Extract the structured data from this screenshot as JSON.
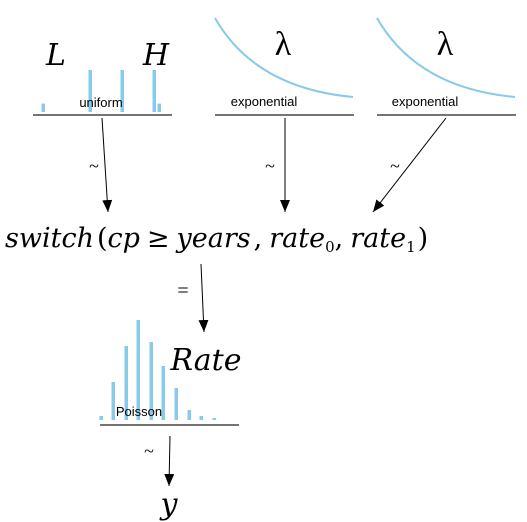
{
  "colors": {
    "accent": "#87cbe8",
    "ink": "#000000",
    "rule": "#222222"
  },
  "nodes": {
    "uniform": {
      "dist_label": "uniform",
      "param_left": "L",
      "param_right": "H",
      "bar_levels": [
        0.12,
        0.6,
        0.6,
        0.6,
        0.12
      ]
    },
    "exponential_1": {
      "dist_label": "exponential",
      "param": "λ"
    },
    "exponential_2": {
      "dist_label": "exponential",
      "param": "λ"
    },
    "poisson": {
      "dist_label": "Poisson",
      "param": "Rate",
      "bar_levels": [
        0.04,
        0.38,
        0.74,
        1.0,
        0.78,
        0.54,
        0.32,
        0.1,
        0.04,
        0.02
      ]
    }
  },
  "expression": {
    "func": "switch",
    "lparen": "(",
    "var": "cp",
    "op": "≥",
    "arg_years": "years",
    "comma": ",",
    "rate": "rate",
    "sub0": "0",
    "sub1": "1",
    "rparen": ")"
  },
  "relations": {
    "tilde": "~",
    "equals": "=",
    "y_label": "y"
  }
}
